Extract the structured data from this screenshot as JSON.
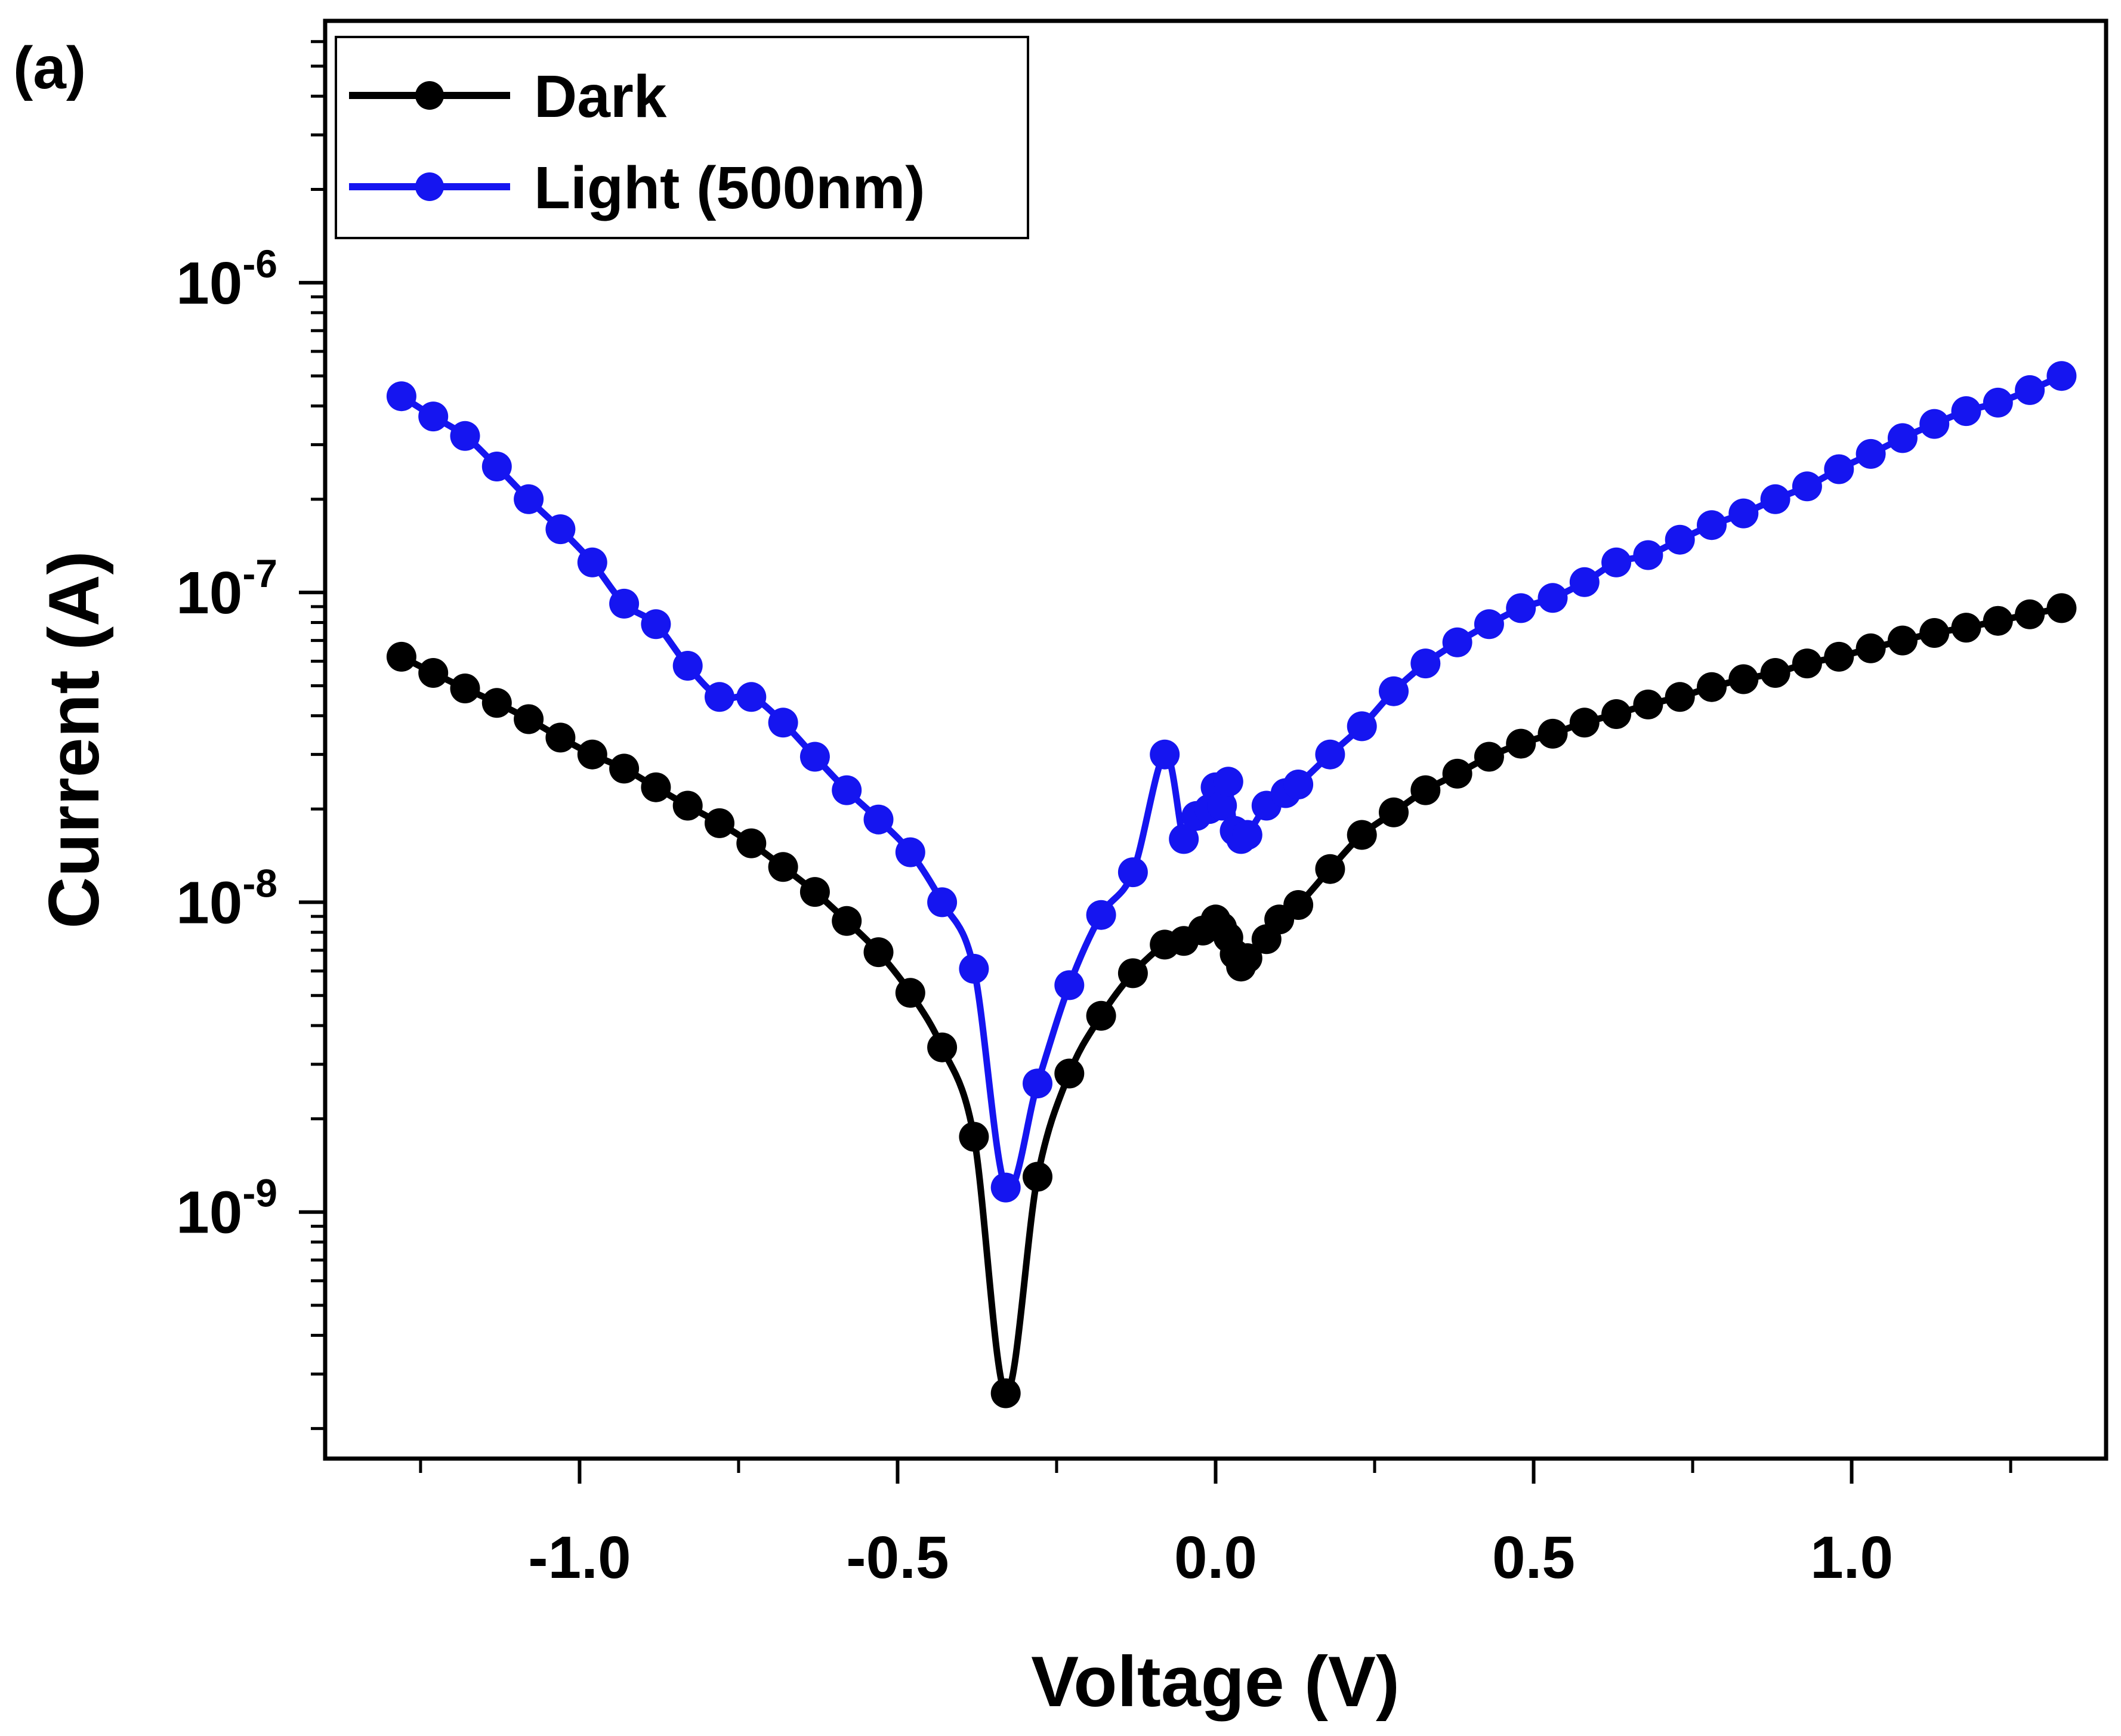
{
  "panel_label": "(a)",
  "chart_data": {
    "type": "line",
    "title": "",
    "xlabel": "Voltage (V)",
    "ylabel": "Current (A)",
    "xscale": "linear",
    "yscale": "log",
    "xlim": [
      -1.4,
      1.4
    ],
    "ylim": [
      1.6e-10,
      7e-06
    ],
    "xticks": [
      -1.0,
      -0.5,
      0.0,
      0.5,
      1.0
    ],
    "xtick_labels": [
      "-1.0",
      "-0.5",
      "0.0",
      "0.5",
      "1.0"
    ],
    "yticks": [
      1e-09,
      1e-08,
      1e-07,
      1e-06
    ],
    "ytick_labels": [
      {
        "base": "10",
        "exp": "-9"
      },
      {
        "base": "10",
        "exp": "-8"
      },
      {
        "base": "10",
        "exp": "-7"
      },
      {
        "base": "10",
        "exp": "-6"
      }
    ],
    "grid": false,
    "legend_position": "top-left",
    "series": [
      {
        "name": "Dark",
        "color": "#000000",
        "x": [
          -1.28,
          -1.23,
          -1.18,
          -1.13,
          -1.08,
          -1.03,
          -0.98,
          -0.93,
          -0.88,
          -0.83,
          -0.78,
          -0.73,
          -0.68,
          -0.63,
          -0.58,
          -0.53,
          -0.48,
          -0.43,
          -0.38,
          -0.33,
          -0.28,
          -0.23,
          -0.18,
          -0.13,
          -0.08,
          -0.05,
          -0.02,
          0.0,
          0.01,
          0.02,
          0.03,
          0.04,
          0.05,
          0.08,
          0.1,
          0.13,
          0.18,
          0.23,
          0.28,
          0.33,
          0.38,
          0.43,
          0.48,
          0.53,
          0.58,
          0.63,
          0.68,
          0.73,
          0.78,
          0.83,
          0.88,
          0.93,
          0.98,
          1.03,
          1.08,
          1.13,
          1.18,
          1.23,
          1.28,
          1.33
        ],
        "y": [
          6.2e-08,
          5.5e-08,
          4.9e-08,
          4.4e-08,
          3.9e-08,
          3.4e-08,
          3e-08,
          2.7e-08,
          2.35e-08,
          2.05e-08,
          1.8e-08,
          1.55e-08,
          1.3e-08,
          1.08e-08,
          8.7e-09,
          6.9e-09,
          5.1e-09,
          3.4e-09,
          1.75e-09,
          2.6e-10,
          1.3e-09,
          2.8e-09,
          4.3e-09,
          5.9e-09,
          7.3e-09,
          7.5e-09,
          8.1e-09,
          8.8e-09,
          8.3e-09,
          7.7e-09,
          6.8e-09,
          6.2e-09,
          6.6e-09,
          7.6e-09,
          8.8e-09,
          9.8e-09,
          1.28e-08,
          1.65e-08,
          1.95e-08,
          2.3e-08,
          2.6e-08,
          2.95e-08,
          3.25e-08,
          3.5e-08,
          3.8e-08,
          4.05e-08,
          4.35e-08,
          4.6e-08,
          4.95e-08,
          5.25e-08,
          5.5e-08,
          5.9e-08,
          6.2e-08,
          6.6e-08,
          7e-08,
          7.4e-08,
          7.7e-08,
          8.1e-08,
          8.5e-08,
          8.9e-08
        ]
      },
      {
        "name": "Light (500nm)",
        "color": "#1515f0",
        "x": [
          -1.28,
          -1.23,
          -1.18,
          -1.13,
          -1.08,
          -1.03,
          -0.98,
          -0.93,
          -0.88,
          -0.83,
          -0.78,
          -0.73,
          -0.68,
          -0.63,
          -0.58,
          -0.53,
          -0.48,
          -0.43,
          -0.38,
          -0.33,
          -0.28,
          -0.23,
          -0.18,
          -0.13,
          -0.08,
          -0.05,
          -0.03,
          -0.01,
          0.0,
          0.01,
          0.02,
          0.03,
          0.04,
          0.05,
          0.08,
          0.11,
          0.13,
          0.18,
          0.23,
          0.28,
          0.33,
          0.38,
          0.43,
          0.48,
          0.53,
          0.58,
          0.63,
          0.68,
          0.73,
          0.78,
          0.83,
          0.88,
          0.93,
          0.98,
          1.03,
          1.08,
          1.13,
          1.18,
          1.23,
          1.28,
          1.33
        ],
        "y": [
          4.3e-07,
          3.7e-07,
          3.2e-07,
          2.55e-07,
          2e-07,
          1.6e-07,
          1.25e-07,
          9.2e-08,
          7.9e-08,
          5.8e-08,
          4.6e-08,
          4.6e-08,
          3.8e-08,
          2.95e-08,
          2.3e-08,
          1.85e-08,
          1.45e-08,
          1e-08,
          6.1e-09,
          1.2e-09,
          2.6e-09,
          5.4e-09,
          9.1e-09,
          1.25e-08,
          3e-08,
          1.6e-08,
          1.9e-08,
          2e-08,
          2.35e-08,
          2.05e-08,
          2.45e-08,
          1.7e-08,
          1.6e-08,
          1.65e-08,
          2.05e-08,
          2.25e-08,
          2.4e-08,
          3e-08,
          3.7e-08,
          4.8e-08,
          5.9e-08,
          6.9e-08,
          7.9e-08,
          8.9e-08,
          9.6e-08,
          1.08e-07,
          1.25e-07,
          1.32e-07,
          1.48e-07,
          1.65e-07,
          1.8e-07,
          2e-07,
          2.2e-07,
          2.5e-07,
          2.8e-07,
          3.15e-07,
          3.5e-07,
          3.85e-07,
          4.1e-07,
          4.5e-07,
          5e-07
        ]
      }
    ]
  }
}
